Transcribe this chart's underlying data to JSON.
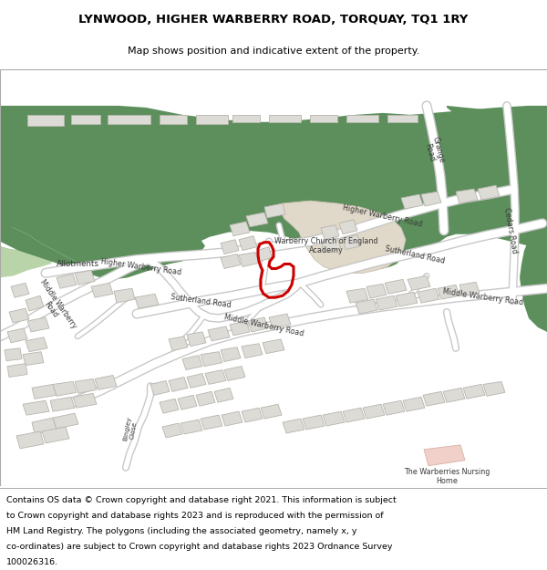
{
  "title_line1": "LYNWOOD, HIGHER WARBERRY ROAD, TORQUAY, TQ1 1RY",
  "title_line2": "Map shows position and indicative extent of the property.",
  "footer_lines": [
    "Contains OS data © Crown copyright and database right 2021. This information is subject",
    "to Crown copyright and database rights 2023 and is reproduced with the permission of",
    "HM Land Registry. The polygons (including the associated geometry, namely x, y",
    "co-ordinates) are subject to Crown copyright and database rights 2023 Ordnance Survey",
    "100026316."
  ],
  "bg_color": "#f2ede8",
  "green_dark": "#5c8f5c",
  "green_light": "#b8d4a8",
  "road_white": "#ffffff",
  "road_outline": "#c8c8c8",
  "building_fill": "#dddbd5",
  "building_edge": "#b8b5ae",
  "school_fill": "#e0d8c8",
  "school_edge": "#c8c0b0",
  "pink_fill": "#f0d0c8",
  "pink_edge": "#d8b0a8",
  "red_poly": "#cc0000",
  "title_fs": 9.5,
  "subtitle_fs": 8.0,
  "footer_fs": 6.8,
  "label_fs": 5.8,
  "label_color": "#383838"
}
